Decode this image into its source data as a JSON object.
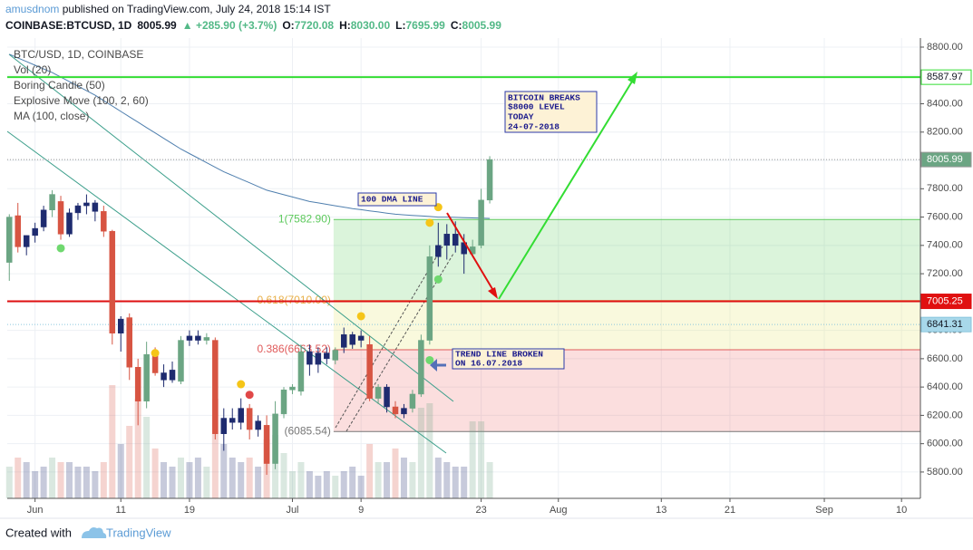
{
  "chart_data": {
    "type": "candlestick",
    "published": [
      "amusdnom",
      "published on TradingView.com, July 24, 2018 15:14 IST"
    ],
    "symbol_line": [
      {
        "text": "COINBASE:BTCUSD, 1D",
        "color": "#131722"
      },
      {
        "text": "8005.99",
        "color": "#131722"
      },
      {
        "text": "▲ +285.90 (+3.7%)",
        "color": "#53b987"
      },
      {
        "text": "O:",
        "color": "#131722"
      },
      {
        "text": "7720.08",
        "color": "#53b987"
      },
      {
        "text": "H:",
        "color": "#131722"
      },
      {
        "text": "8030.00",
        "color": "#53b987"
      },
      {
        "text": "L:",
        "color": "#131722"
      },
      {
        "text": "7695.99",
        "color": "#53b987"
      },
      {
        "text": "C:",
        "color": "#131722"
      },
      {
        "text": "8005.99",
        "color": "#53b987"
      }
    ],
    "legend": [
      "BTC/USD, 1D, COINBASE",
      "Vol (20)",
      "Boring Candle (50)",
      "Explosive Move (100, 2, 60)",
      "MA (100, close)"
    ],
    "footer": [
      "Created with",
      "TradingView"
    ],
    "annotations": [
      {
        "lines": [
          "BITCOIN BREAKS",
          "$8000 LEVEL",
          "TODAY",
          "24-07-2018"
        ]
      },
      {
        "lines": [
          "100 DMA LINE"
        ]
      },
      {
        "lines": [
          "TREND LINE BROKEN",
          "ON 16.07.2018"
        ]
      }
    ],
    "xlim": [
      -3.24,
      103.2
    ],
    "ylim": [
      5614,
      8864
    ],
    "xticks": [
      {
        "value": 0,
        "label": "Jun"
      },
      {
        "value": 10,
        "label": "11"
      },
      {
        "value": 18,
        "label": "19"
      },
      {
        "value": 30,
        "label": "Jul"
      },
      {
        "value": 38,
        "label": "9"
      },
      {
        "value": 52,
        "label": "23"
      },
      {
        "value": 61,
        "label": "Aug"
      },
      {
        "value": 73,
        "label": "13"
      },
      {
        "value": 81,
        "label": "21"
      },
      {
        "value": 92,
        "label": "Sep"
      },
      {
        "value": 101,
        "label": "10"
      }
    ],
    "yticks": [
      {
        "value": 5800,
        "label": "5800.00"
      },
      {
        "value": 6000,
        "label": "6000.00"
      },
      {
        "value": 6200,
        "label": "6200.00"
      },
      {
        "value": 6400,
        "label": "6400.00"
      },
      {
        "value": 6600,
        "label": "6600.00"
      },
      {
        "value": 6800,
        "label": "6800.00"
      },
      {
        "value": 7000,
        "label": "7000.00"
      },
      {
        "value": 7200,
        "label": "7200.00"
      },
      {
        "value": 7400,
        "label": "7400.00"
      },
      {
        "value": 7600,
        "label": "7600.00"
      },
      {
        "value": 7800,
        "label": "7800.00"
      },
      {
        "value": 8000,
        "label": "8000.00"
      },
      {
        "value": 8200,
        "label": "8200.00"
      },
      {
        "value": 8400,
        "label": "8400.00"
      },
      {
        "value": 8600,
        "label": "8600.00"
      },
      {
        "value": 8800,
        "label": "8800.00"
      }
    ],
    "grid": true,
    "candles": {
      "x": [
        -3,
        -2,
        -1,
        0,
        1,
        2,
        3,
        4,
        5,
        6,
        7,
        8,
        9,
        10,
        11,
        12,
        13,
        14,
        15,
        16,
        17,
        18,
        19,
        20,
        21,
        22,
        23,
        24,
        25,
        26,
        27,
        28,
        29,
        30,
        31,
        32,
        33,
        34,
        35,
        36,
        37,
        38,
        39,
        40,
        41,
        42,
        43,
        44,
        45,
        46,
        47,
        48,
        49,
        50,
        51,
        52,
        53
      ],
      "open": [
        7280,
        7610,
        7390,
        7470,
        7530,
        7650,
        7710,
        7480,
        7630,
        7680,
        7700,
        7640,
        7500,
        6780,
        6890,
        6540,
        6300,
        6630,
        6500,
        6450,
        6440,
        6730,
        6760,
        6730,
        6730,
        6070,
        6180,
        6150,
        6250,
        6100,
        6130,
        5860,
        6210,
        6380,
        6370,
        6650,
        6560,
        6640,
        6590,
        6680,
        6770,
        6730,
        6700,
        6320,
        6400,
        6260,
        6210,
        6250,
        6350,
        6730,
        7320,
        7400,
        7480,
        7420,
        7340,
        7400,
        7720.08
      ],
      "high": [
        7620,
        7700,
        7470,
        7560,
        7680,
        7790,
        7750,
        7660,
        7700,
        7760,
        7720,
        7680,
        7510,
        6900,
        6920,
        6600,
        6720,
        6680,
        6560,
        6580,
        6760,
        6800,
        6800,
        6780,
        6750,
        6250,
        6250,
        6320,
        6280,
        6200,
        6200,
        6300,
        6400,
        6420,
        6700,
        6700,
        6680,
        6680,
        6680,
        6820,
        6790,
        6800,
        6760,
        6420,
        6420,
        6300,
        6280,
        6380,
        6770,
        7400,
        7560,
        7550,
        7570,
        7480,
        7440,
        7800,
        8030
      ],
      "low": [
        7150,
        7350,
        7330,
        7420,
        7500,
        7600,
        7440,
        7460,
        7580,
        7620,
        7570,
        7460,
        6700,
        6650,
        6450,
        6130,
        6250,
        6480,
        6400,
        6430,
        6420,
        6690,
        6700,
        6700,
        6030,
        5950,
        6100,
        6100,
        6030,
        6050,
        5780,
        5820,
        6180,
        6350,
        6340,
        6480,
        6500,
        6560,
        6560,
        6640,
        6670,
        6680,
        6300,
        6280,
        6220,
        6180,
        6180,
        6220,
        6330,
        6700,
        7250,
        7300,
        7350,
        7200,
        7320,
        7380,
        7695.99
      ],
      "close": [
        7600,
        7390,
        7470,
        7520,
        7650,
        7760,
        7480,
        7630,
        7680,
        7700,
        7640,
        7500,
        6780,
        6880,
        6540,
        6300,
        6630,
        6500,
        6450,
        6520,
        6730,
        6760,
        6730,
        6750,
        6070,
        6180,
        6150,
        6250,
        6100,
        6160,
        5860,
        6210,
        6380,
        6400,
        6650,
        6560,
        6640,
        6600,
        6660,
        6770,
        6700,
        6760,
        6320,
        6400,
        6260,
        6210,
        6250,
        6350,
        6730,
        7320,
        7400,
        7480,
        7400,
        7340,
        7390,
        7720,
        8005.99
      ],
      "colors": [
        "#6ba583",
        "#d75442",
        "#1e2b6f",
        "#1e2b6f",
        "#1e2b6f",
        "#6ba583",
        "#d75442",
        "#1e2b6f",
        "#1e2b6f",
        "#1e2b6f",
        "#1e2b6f",
        "#d75442",
        "#d75442",
        "#1e2b6f",
        "#d75442",
        "#d75442",
        "#6ba583",
        "#d75442",
        "#1e2b6f",
        "#1e2b6f",
        "#6ba583",
        "#1e2b6f",
        "#1e2b6f",
        "#6ba583",
        "#d75442",
        "#1e2b6f",
        "#1e2b6f",
        "#1e2b6f",
        "#d75442",
        "#1e2b6f",
        "#d75442",
        "#6ba583",
        "#6ba583",
        "#6ba583",
        "#6ba583",
        "#1e2b6f",
        "#1e2b6f",
        "#1e2b6f",
        "#6ba583",
        "#1e2b6f",
        "#1e2b6f",
        "#1e2b6f",
        "#d75442",
        "#6ba583",
        "#1e2b6f",
        "#d75442",
        "#1e2b6f",
        "#6ba583",
        "#6ba583",
        "#6ba583",
        "#1e2b6f",
        "#1e2b6f",
        "#1e2b6f",
        "#1e2b6f",
        "#6ba583",
        "#6ba583",
        "#6ba583"
      ]
    },
    "volume": {
      "values": [
        35,
        45,
        40,
        30,
        35,
        45,
        40,
        40,
        35,
        35,
        30,
        40,
        125,
        60,
        80,
        110,
        90,
        55,
        40,
        35,
        45,
        40,
        45,
        35,
        110,
        60,
        45,
        40,
        45,
        35,
        65,
        70,
        50,
        30,
        40,
        30,
        25,
        30,
        25,
        30,
        35,
        25,
        60,
        40,
        40,
        55,
        45,
        40,
        100,
        105,
        45,
        40,
        35,
        35,
        85,
        85,
        40
      ],
      "lim": [
        0,
        150
      ],
      "opacity": 0.25
    },
    "ma": {
      "values": [
        8750,
        8724,
        8698,
        8672,
        8646,
        8620,
        8588,
        8556,
        8524,
        8492,
        8460,
        8422,
        8384,
        8346,
        8308,
        8270,
        8232,
        8194,
        8156,
        8118,
        8080,
        8048,
        8016,
        7984,
        7952,
        7920,
        7894,
        7868,
        7842,
        7816,
        7790,
        7774,
        7758,
        7742,
        7726,
        7710,
        7700,
        7690,
        7680,
        7670,
        7660,
        7652,
        7644,
        7636,
        7628,
        7620,
        7616,
        7612,
        7608,
        7604,
        7600,
        7600,
        7598,
        7596,
        7594,
        7592,
        7590
      ],
      "color": "#4f7fae"
    },
    "fib": {
      "start": 34.8,
      "levels": [
        {
          "value": 7582.9,
          "label": "1(7582.90)",
          "color": "#5cc95c"
        },
        {
          "value": 7010,
          "label": "0.618(7010.00)",
          "color": "#e8b04a"
        },
        {
          "value": 6663.52,
          "label": "0.386(6663.52)",
          "color": "#e05a5a"
        },
        {
          "value": 6085.54,
          "label": "(6085.54)",
          "color": "#777777"
        }
      ],
      "fills": [
        "rgba(76,200,76,0.2)",
        "rgba(232,230,120,0.25)",
        "rgba(235,90,90,0.2)"
      ]
    },
    "price_lines": [
      {
        "value": 8587.97,
        "color": "#33dd33",
        "dash": "none",
        "box": "#ffffff",
        "text_color": "#131722"
      },
      {
        "value": 8005.99,
        "color": "#999999",
        "dash": "1,2",
        "box": "#6ba583",
        "text_color": "#ffffff"
      },
      {
        "value": 7005.25,
        "color": "#e01010",
        "dash": "none",
        "box": "#e01010",
        "text_color": "#ffffff"
      },
      {
        "value": 6841.31,
        "color": "#8ac6dd",
        "dash": "1,2",
        "box": "#a8d8ea",
        "text_color": "#131722"
      }
    ],
    "signals": [
      {
        "x": 3,
        "y": 7380,
        "color": "#6fd86f"
      },
      {
        "x": 14,
        "y": 6640,
        "color": "#f5c518"
      },
      {
        "x": 24,
        "y": 6420,
        "color": "#f5c518"
      },
      {
        "x": 25,
        "y": 6345,
        "color": "#e04848"
      },
      {
        "x": 38,
        "y": 6900,
        "color": "#f5c518"
      },
      {
        "x": 46,
        "y": 6590,
        "color": "#6fd86f"
      },
      {
        "x": 46,
        "y": 7560,
        "color": "#f5c518"
      },
      {
        "x": 47,
        "y": 7670,
        "color": "#f5c518"
      },
      {
        "x": 47,
        "y": 7160,
        "color": "#6fd86f"
      }
    ]
  }
}
